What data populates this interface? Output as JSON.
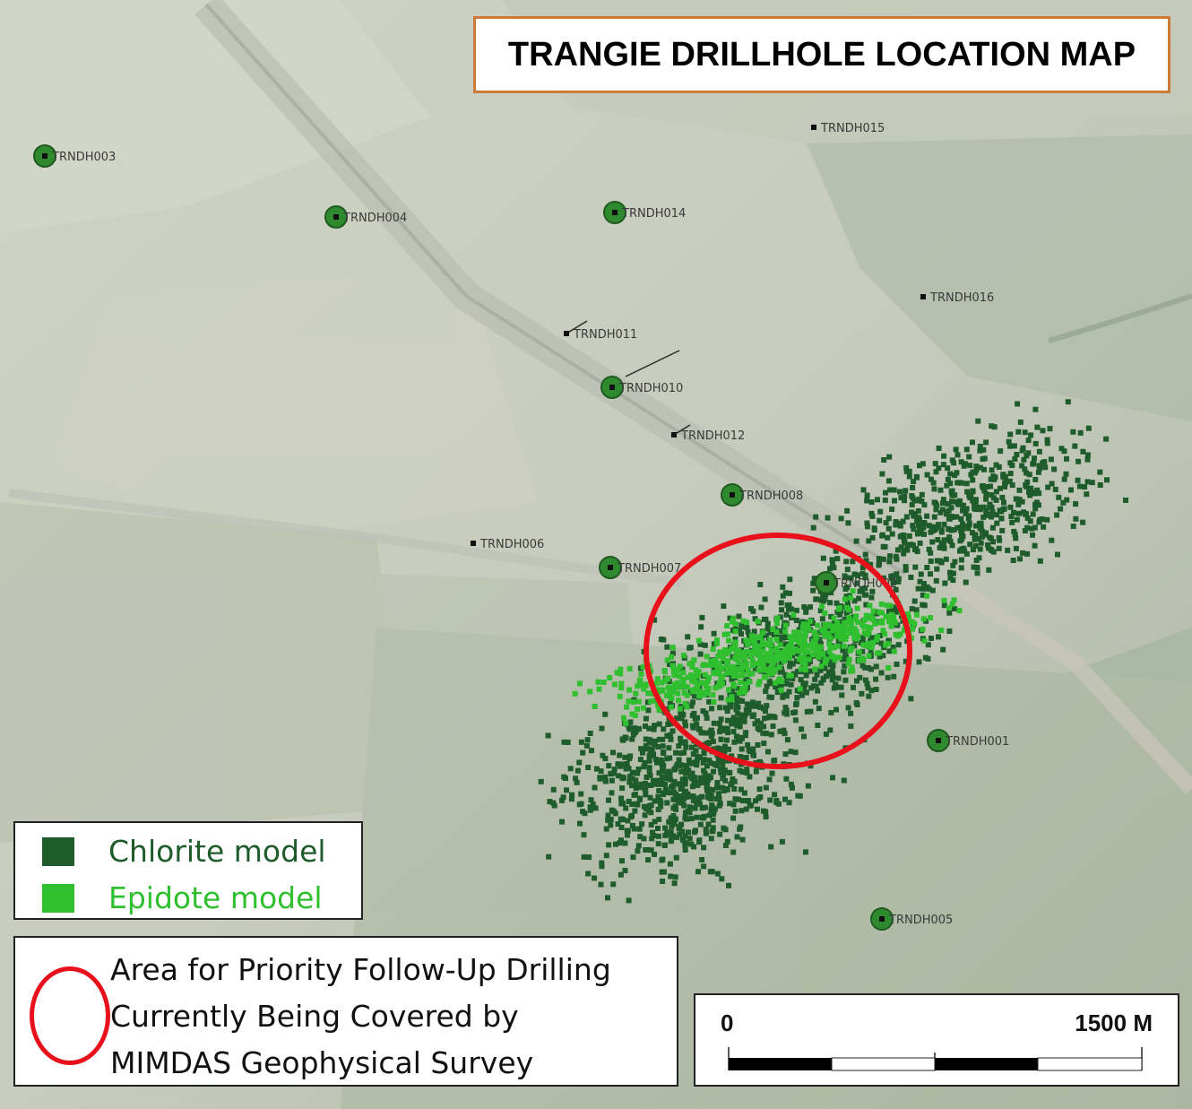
{
  "title": "TRANGIE DRILLHOLE LOCATION MAP",
  "drillholes": [
    {
      "id": "TRNDH003",
      "label": "TRNDH003",
      "marker": "collar"
    },
    {
      "id": "TRNDH004",
      "label": "TRNDH004",
      "marker": "collar"
    },
    {
      "id": "TRNDH014",
      "label": "TRNDH014",
      "marker": "collar"
    },
    {
      "id": "TRNDH015",
      "label": "TRNDH015",
      "marker": "planned"
    },
    {
      "id": "TRNDH016",
      "label": "TRNDH016",
      "marker": "planned"
    },
    {
      "id": "TRNDH011",
      "label": "TRNDH011",
      "marker": "planned"
    },
    {
      "id": "TRNDH010",
      "label": "TRNDH010",
      "marker": "collar"
    },
    {
      "id": "TRNDH012",
      "label": "TRNDH012",
      "marker": "planned"
    },
    {
      "id": "TRNDH008",
      "label": "TRNDH008",
      "marker": "collar"
    },
    {
      "id": "TRNDH006",
      "label": "TRNDH006",
      "marker": "planned"
    },
    {
      "id": "TRNDH007",
      "label": "TRNDH007",
      "marker": "collar"
    },
    {
      "id": "TRNDH001",
      "label": "TRNDH001",
      "marker": "collar"
    },
    {
      "id": "TRNDH005",
      "label": "TRNDH005",
      "marker": "collar"
    },
    {
      "id": "TRNDH002",
      "label": "TRNDH002",
      "marker": "collar"
    }
  ],
  "legend": {
    "models": [
      {
        "label": "Chlorite model",
        "color": "#1e5c2c"
      },
      {
        "label": "Epidote model",
        "color": "#2fbf2f"
      }
    ],
    "priority_area": {
      "lines": [
        "Area for Priority Follow-Up Drilling",
        "Currently Being Covered by",
        "MIMDAS Geophysical Survey"
      ],
      "color": "#e8111b"
    }
  },
  "scale_bar": {
    "start_label": "0",
    "end_label": "1500 M"
  },
  "colors": {
    "chlorite": "#1e5c2c",
    "epidote": "#2fbf2f",
    "priority_area": "#e8111b",
    "title_border": "#cc7a36",
    "collar_marker": "#2f8a2f"
  }
}
